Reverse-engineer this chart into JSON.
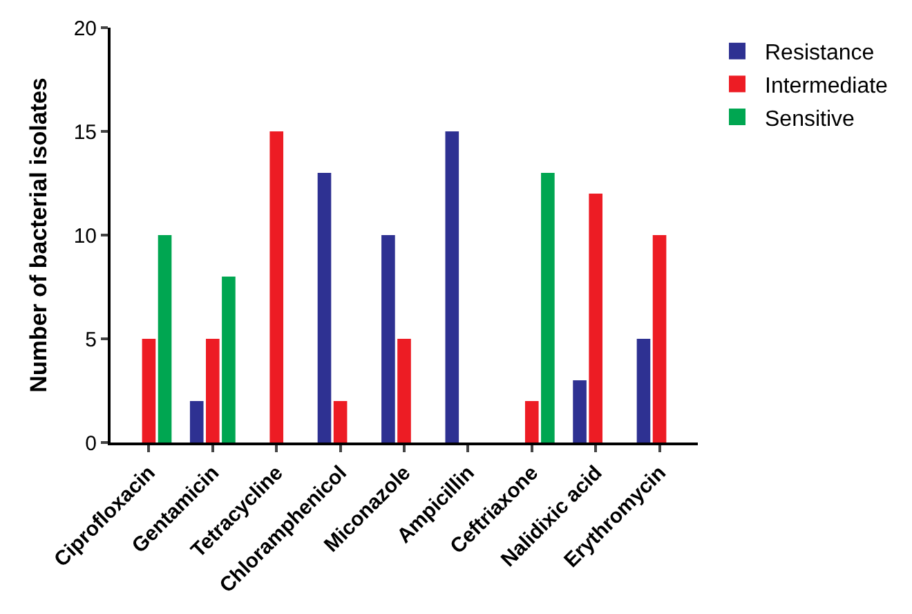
{
  "chart_data": {
    "type": "bar",
    "ylabel": "Number of bacterial isolates",
    "categories": [
      "Ciprofloxacin",
      "Gentamicin",
      "Tetracycline",
      "Chloramphenicol",
      "Miconazole",
      "Ampicillin",
      "Ceftriaxone",
      "Nalidixic acid",
      "Erythromycin"
    ],
    "series": [
      {
        "name": "Resistance",
        "color": "#2e3192",
        "values": [
          0,
          2,
          0,
          13,
          10,
          15,
          0,
          3,
          5
        ]
      },
      {
        "name": "Intermediate",
        "color": "#ed1c24",
        "values": [
          5,
          5,
          15,
          2,
          5,
          0,
          2,
          12,
          10
        ]
      },
      {
        "name": "Sensitive",
        "color": "#00a651",
        "values": [
          10,
          8,
          0,
          0,
          0,
          0,
          13,
          0,
          0
        ]
      }
    ],
    "ylim": [
      0,
      20
    ],
    "yticks": [
      0,
      5,
      10,
      15,
      20
    ],
    "grid": false,
    "legend": "top right"
  }
}
